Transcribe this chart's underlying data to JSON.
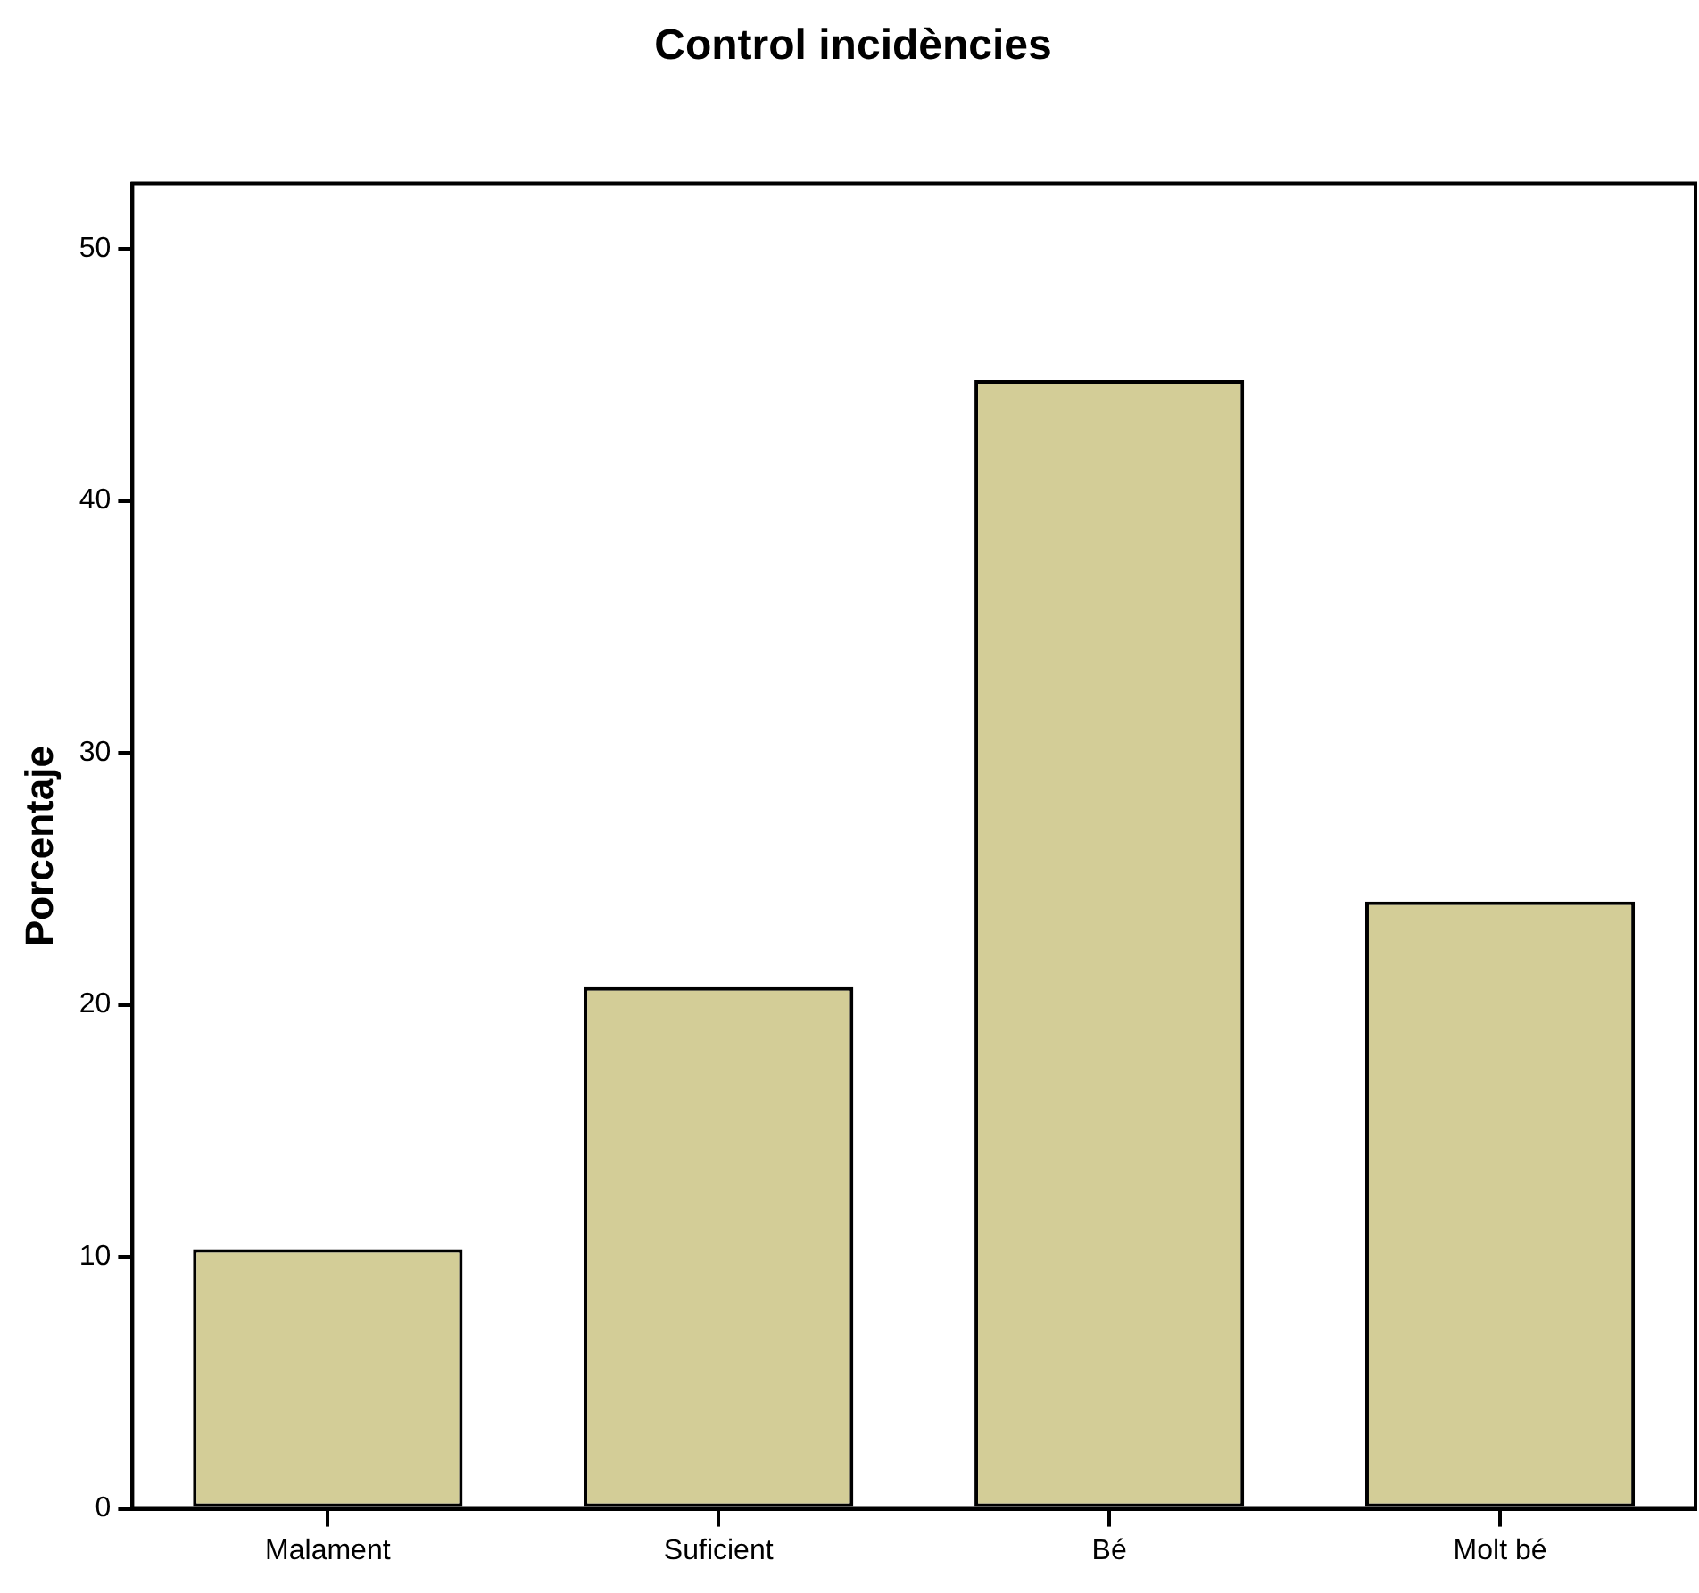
{
  "chart_data": {
    "type": "bar",
    "title": "Control incidències",
    "ylabel": "Porcentaje",
    "categories": [
      "Malament",
      "Suficient",
      "Bé",
      "Molt bé"
    ],
    "values": [
      10.3,
      20.7,
      44.8,
      24.1
    ],
    "color": "#d3cd97",
    "ylim": [
      0,
      52.6
    ],
    "yticks": [
      0,
      10,
      20,
      30,
      40,
      50
    ],
    "grid": false,
    "legend": false
  }
}
